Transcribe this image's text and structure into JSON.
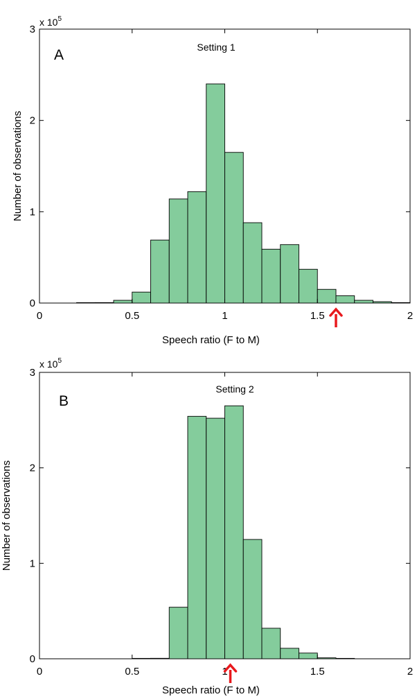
{
  "chart_data": [
    {
      "type": "bar",
      "panel_letter": "A",
      "title": "Setting 1",
      "xlabel": "Speech ratio (F to M)",
      "ylabel": "Number of observations",
      "y_multiplier_label": "x 10",
      "y_multiplier_exponent": "5",
      "xlim": [
        0,
        2
      ],
      "ylim": [
        0,
        3
      ],
      "xticks": [
        "0",
        "0.5",
        "1",
        "1.5",
        "2"
      ],
      "yticks": [
        "0",
        "1",
        "2",
        "3"
      ],
      "bar_color": "#84cc9c",
      "bar_edge_color": "#000000",
      "bin_width": 0.1,
      "bin_left_edges": [
        0.2,
        0.3,
        0.4,
        0.5,
        0.6,
        0.7,
        0.8,
        0.9,
        1.0,
        1.1,
        1.2,
        1.3,
        1.4,
        1.5,
        1.6,
        1.7,
        1.8,
        1.9
      ],
      "values": [
        0.003,
        0.005,
        0.03,
        0.12,
        0.69,
        1.14,
        1.22,
        2.4,
        1.65,
        0.88,
        0.59,
        0.64,
        0.37,
        0.15,
        0.08,
        0.03,
        0.015,
        0.005
      ],
      "marker": {
        "x": 1.6,
        "color": "#e8191d"
      }
    },
    {
      "type": "bar",
      "panel_letter": "B",
      "title": "Setting 2",
      "xlabel": "Speech ratio (F to M)",
      "ylabel": "Number of observations",
      "y_multiplier_label": "x 10",
      "y_multiplier_exponent": "5",
      "xlim": [
        0,
        2
      ],
      "ylim": [
        0,
        3
      ],
      "xticks": [
        "0",
        "0.5",
        "1",
        "1.5",
        "2"
      ],
      "yticks": [
        "0",
        "1",
        "2",
        "3"
      ],
      "bar_color": "#84cc9c",
      "bar_edge_color": "#000000",
      "bin_width": 0.1,
      "bin_left_edges": [
        0.5,
        0.6,
        0.7,
        0.8,
        0.9,
        1.0,
        1.1,
        1.2,
        1.3,
        1.4,
        1.5,
        1.6
      ],
      "values": [
        0.003,
        0.005,
        0.54,
        2.54,
        2.52,
        2.65,
        1.25,
        0.32,
        0.11,
        0.06,
        0.01,
        0.003
      ],
      "marker": {
        "x": 1.03,
        "color": "#e8191d"
      }
    }
  ]
}
